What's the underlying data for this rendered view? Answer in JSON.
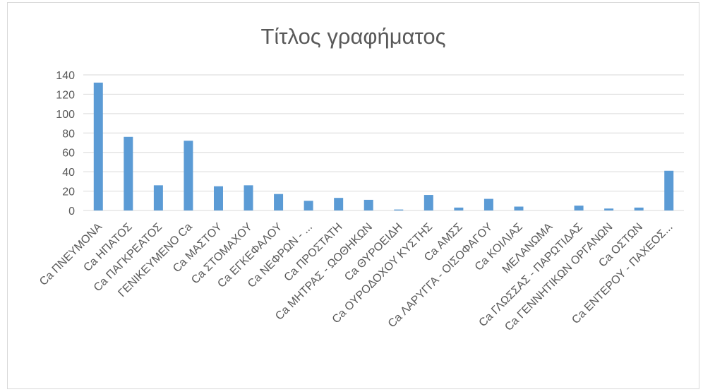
{
  "chart_data": {
    "type": "bar",
    "title": "Τίτλος γραφήματος",
    "xlabel": "",
    "ylabel": "",
    "ylim": [
      0,
      140
    ],
    "yticks": [
      0,
      20,
      40,
      60,
      80,
      100,
      120,
      140
    ],
    "grid": true,
    "legend": "none",
    "bar_color": "#5b9bd5",
    "categories": [
      "Ca ΠΝΕΥΜΟΝΑ",
      "Ca ΗΠΑΤΟΣ",
      "Ca ΠΑΓΚΡΕΑΤΟΣ",
      "ΓΕΝΙΚΕΥΜΕΝΟ Ca",
      "Ca ΜΑΣΤΟΥ",
      "Ca ΣΤΟΜΑΧΟΥ",
      "Ca ΕΓΚΕΦΑΛΟΥ",
      "Ca ΝΕΦΡΩΝ - ...",
      "Ca ΠΡΟΣΤΑΤΗ",
      "Ca ΜΗΤΡΑΣ - ΩΟΘΗΚΩΝ",
      "Ca ΘΥΡΟΕΙΔΗ",
      "Ca ΟΥΡΟΔΟΧΟΥ ΚΥΣΤΗΣ",
      "Ca ΑΜΣΣ",
      "Ca ΛΑΡΥΓΓΑ - ΟΙΣΟΦΑΓΟΥ",
      "Ca ΚΟΙΛΙΑΣ",
      "ΜΕΛΑΝΩΜΑ",
      "Ca ΓΛΩΣΣΑΣ - ΠΑΡΩΤΙΔΑΣ",
      "Ca ΓΕΝΝΗΤΙΚΩΝ ΟΡΓΑΝΩΝ",
      "Ca ΟΣΤΩΝ",
      "Ca ΕΝΤΕΡΟΥ - ΠΑΧΕΟΣ..."
    ],
    "values": [
      132,
      76,
      26,
      72,
      25,
      26,
      17,
      10,
      13,
      11,
      1,
      16,
      3,
      12,
      4,
      0,
      5,
      2,
      3,
      41
    ]
  }
}
